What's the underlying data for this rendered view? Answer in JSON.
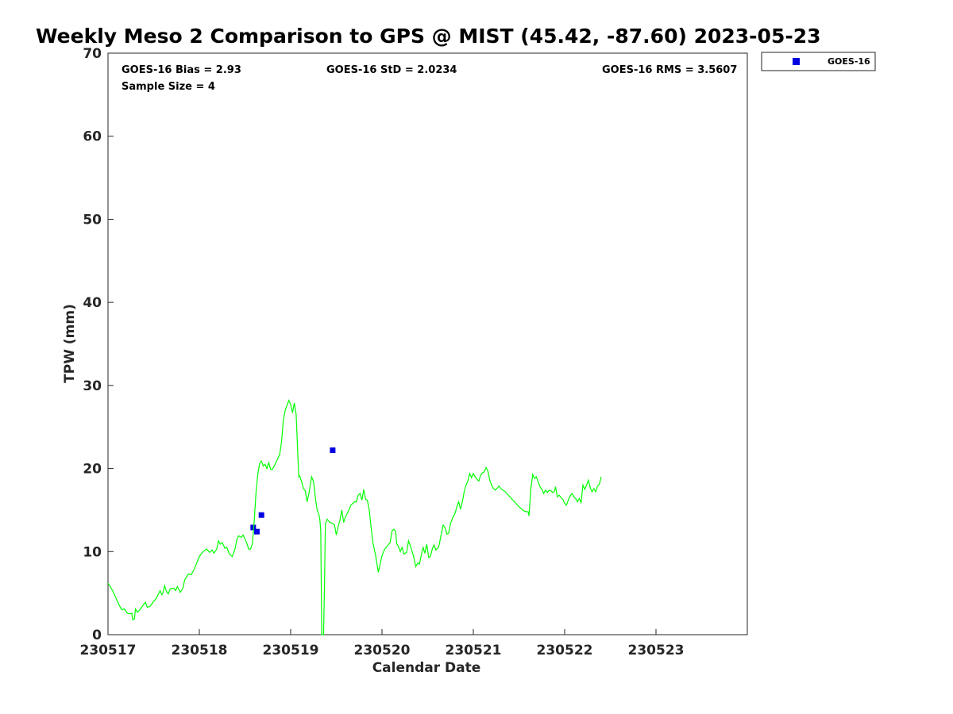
{
  "chart_data": {
    "type": "scatter",
    "title": "Weekly Meso 2 Comparison to GPS @ MIST (45.42, -87.60) 2023-05-23",
    "xlabel": "Calendar Date",
    "ylabel": "TPW (mm)",
    "xlim": [
      0,
      7
    ],
    "ylim": [
      0,
      70
    ],
    "x_ticks": [
      0,
      1,
      2,
      3,
      4,
      5,
      6
    ],
    "x_tick_labels": [
      "230517",
      "230518",
      "230519",
      "230520",
      "230521",
      "230522",
      "230523"
    ],
    "y_ticks": [
      0,
      10,
      20,
      30,
      40,
      50,
      60,
      70
    ],
    "y_tick_labels": [
      "0",
      "10",
      "20",
      "30",
      "40",
      "50",
      "60",
      "70"
    ],
    "grid": false,
    "legend_position": "outside-top-right",
    "stats": {
      "bias": "GOES-16 Bias = 2.93",
      "std": "GOES-16 StD = 2.0234",
      "rms": "GOES-16 RMS = 3.5607",
      "sample": "Sample Size = 4"
    },
    "series": [
      {
        "name": "GOES-16",
        "kind": "scatter",
        "marker": "square",
        "color": "#0000e0",
        "points": [
          [
            1.59,
            12.9
          ],
          [
            1.63,
            12.4
          ],
          [
            1.68,
            14.4
          ],
          [
            2.46,
            22.2
          ]
        ]
      },
      {
        "kind": "line",
        "color": "#00ff00",
        "points": [
          [
            0.0,
            6.2
          ],
          [
            0.04,
            5.5
          ],
          [
            0.08,
            4.6
          ],
          [
            0.12,
            3.6
          ],
          [
            0.15,
            3.0
          ],
          [
            0.18,
            3.1
          ],
          [
            0.21,
            2.6
          ],
          [
            0.24,
            2.5
          ],
          [
            0.26,
            2.6
          ],
          [
            0.27,
            1.8
          ],
          [
            0.29,
            1.9
          ],
          [
            0.3,
            3.1
          ],
          [
            0.32,
            2.7
          ],
          [
            0.35,
            3.0
          ],
          [
            0.38,
            3.5
          ],
          [
            0.41,
            3.9
          ],
          [
            0.43,
            3.3
          ],
          [
            0.46,
            3.4
          ],
          [
            0.5,
            4.0
          ],
          [
            0.53,
            4.4
          ],
          [
            0.57,
            5.3
          ],
          [
            0.59,
            4.8
          ],
          [
            0.6,
            5.0
          ],
          [
            0.62,
            5.9
          ],
          [
            0.64,
            5.2
          ],
          [
            0.66,
            4.9
          ],
          [
            0.68,
            5.5
          ],
          [
            0.72,
            5.6
          ],
          [
            0.74,
            5.3
          ],
          [
            0.76,
            5.8
          ],
          [
            0.79,
            5.1
          ],
          [
            0.82,
            5.6
          ],
          [
            0.84,
            6.6
          ],
          [
            0.88,
            7.3
          ],
          [
            0.91,
            7.2
          ],
          [
            0.94,
            7.8
          ],
          [
            0.97,
            8.6
          ],
          [
            1.0,
            9.4
          ],
          [
            1.04,
            10.0
          ],
          [
            1.08,
            10.3
          ],
          [
            1.11,
            9.9
          ],
          [
            1.14,
            10.2
          ],
          [
            1.16,
            9.8
          ],
          [
            1.19,
            10.3
          ],
          [
            1.21,
            11.3
          ],
          [
            1.23,
            10.9
          ],
          [
            1.25,
            11.1
          ],
          [
            1.28,
            10.4
          ],
          [
            1.3,
            10.5
          ],
          [
            1.33,
            9.7
          ],
          [
            1.36,
            9.4
          ],
          [
            1.39,
            10.3
          ],
          [
            1.41,
            11.4
          ],
          [
            1.43,
            11.9
          ],
          [
            1.46,
            11.7
          ],
          [
            1.48,
            12.0
          ],
          [
            1.5,
            11.5
          ],
          [
            1.52,
            11.0
          ],
          [
            1.54,
            10.3
          ],
          [
            1.56,
            10.3
          ],
          [
            1.58,
            10.9
          ],
          [
            1.6,
            13.5
          ],
          [
            1.62,
            17.0
          ],
          [
            1.64,
            19.3
          ],
          [
            1.66,
            20.6
          ],
          [
            1.68,
            20.9
          ],
          [
            1.7,
            20.3
          ],
          [
            1.72,
            20.5
          ],
          [
            1.74,
            20.0
          ],
          [
            1.76,
            20.7
          ],
          [
            1.78,
            19.9
          ],
          [
            1.8,
            19.9
          ],
          [
            1.82,
            20.3
          ],
          [
            1.85,
            21.0
          ],
          [
            1.88,
            21.7
          ],
          [
            1.9,
            23.2
          ],
          [
            1.92,
            25.8
          ],
          [
            1.94,
            27.0
          ],
          [
            1.96,
            27.6
          ],
          [
            1.98,
            28.2
          ],
          [
            2.0,
            27.7
          ],
          [
            2.02,
            26.7
          ],
          [
            2.04,
            27.9
          ],
          [
            2.06,
            26.5
          ],
          [
            2.07,
            24.0
          ],
          [
            2.08,
            21.2
          ],
          [
            2.09,
            19.0
          ],
          [
            2.1,
            19.1
          ],
          [
            2.12,
            18.4
          ],
          [
            2.14,
            17.6
          ],
          [
            2.16,
            17.3
          ],
          [
            2.18,
            16.0
          ],
          [
            2.2,
            17.0
          ],
          [
            2.22,
            18.4
          ],
          [
            2.23,
            19.0
          ],
          [
            2.25,
            18.4
          ],
          [
            2.27,
            16.5
          ],
          [
            2.29,
            15.0
          ],
          [
            2.31,
            14.4
          ],
          [
            2.32,
            13.8
          ],
          [
            2.33,
            12.5
          ],
          [
            2.34,
            0.0
          ],
          [
            2.36,
            0.0
          ],
          [
            2.37,
            6.0
          ],
          [
            2.38,
            13.3
          ],
          [
            2.4,
            13.9
          ],
          [
            2.43,
            13.5
          ],
          [
            2.46,
            13.4
          ],
          [
            2.48,
            13.2
          ],
          [
            2.5,
            12.0
          ],
          [
            2.52,
            13.0
          ],
          [
            2.54,
            13.8
          ],
          [
            2.56,
            15.0
          ],
          [
            2.58,
            13.5
          ],
          [
            2.6,
            14.2
          ],
          [
            2.63,
            14.8
          ],
          [
            2.66,
            15.6
          ],
          [
            2.7,
            16.0
          ],
          [
            2.72,
            16.0
          ],
          [
            2.74,
            16.8
          ],
          [
            2.76,
            17.0
          ],
          [
            2.78,
            16.2
          ],
          [
            2.8,
            17.5
          ],
          [
            2.82,
            16.3
          ],
          [
            2.84,
            16.2
          ],
          [
            2.86,
            15.0
          ],
          [
            2.88,
            13.0
          ],
          [
            2.9,
            11.1
          ],
          [
            2.93,
            9.5
          ],
          [
            2.96,
            7.5
          ],
          [
            2.98,
            8.5
          ],
          [
            3.0,
            9.5
          ],
          [
            3.03,
            10.3
          ],
          [
            3.06,
            10.7
          ],
          [
            3.09,
            11.1
          ],
          [
            3.11,
            12.5
          ],
          [
            3.13,
            12.7
          ],
          [
            3.15,
            12.4
          ],
          [
            3.16,
            11.0
          ],
          [
            3.18,
            10.6
          ],
          [
            3.2,
            10.0
          ],
          [
            3.22,
            10.5
          ],
          [
            3.24,
            9.7
          ],
          [
            3.27,
            9.9
          ],
          [
            3.29,
            11.3
          ],
          [
            3.31,
            10.7
          ],
          [
            3.33,
            10.0
          ],
          [
            3.35,
            9.2
          ],
          [
            3.37,
            8.2
          ],
          [
            3.39,
            8.6
          ],
          [
            3.41,
            8.5
          ],
          [
            3.43,
            9.6
          ],
          [
            3.45,
            10.5
          ],
          [
            3.47,
            9.8
          ],
          [
            3.49,
            10.9
          ],
          [
            3.51,
            9.3
          ],
          [
            3.53,
            9.4
          ],
          [
            3.55,
            10.3
          ],
          [
            3.57,
            10.8
          ],
          [
            3.59,
            10.2
          ],
          [
            3.62,
            10.5
          ],
          [
            3.64,
            11.6
          ],
          [
            3.67,
            13.2
          ],
          [
            3.69,
            12.9
          ],
          [
            3.71,
            12.1
          ],
          [
            3.73,
            12.2
          ],
          [
            3.75,
            13.4
          ],
          [
            3.78,
            14.2
          ],
          [
            3.8,
            14.6
          ],
          [
            3.82,
            15.4
          ],
          [
            3.84,
            16.0
          ],
          [
            3.86,
            15.1
          ],
          [
            3.88,
            16.0
          ],
          [
            3.9,
            17.2
          ],
          [
            3.92,
            18.0
          ],
          [
            3.94,
            18.5
          ],
          [
            3.96,
            19.4
          ],
          [
            3.98,
            18.9
          ],
          [
            4.0,
            19.4
          ],
          [
            4.02,
            19.0
          ],
          [
            4.04,
            18.7
          ],
          [
            4.06,
            18.5
          ],
          [
            4.08,
            19.2
          ],
          [
            4.1,
            19.5
          ],
          [
            4.12,
            19.6
          ],
          [
            4.14,
            20.1
          ],
          [
            4.16,
            19.7
          ],
          [
            4.18,
            18.6
          ],
          [
            4.2,
            18.0
          ],
          [
            4.22,
            17.6
          ],
          [
            4.24,
            17.4
          ],
          [
            4.26,
            17.6
          ],
          [
            4.28,
            17.9
          ],
          [
            4.3,
            17.6
          ],
          [
            4.35,
            17.2
          ],
          [
            4.4,
            16.6
          ],
          [
            4.45,
            16.0
          ],
          [
            4.5,
            15.4
          ],
          [
            4.55,
            14.9
          ],
          [
            4.58,
            14.8
          ],
          [
            4.6,
            14.8
          ],
          [
            4.61,
            14.3
          ],
          [
            4.63,
            17.5
          ],
          [
            4.65,
            19.3
          ],
          [
            4.67,
            18.8
          ],
          [
            4.69,
            19.0
          ],
          [
            4.71,
            18.4
          ],
          [
            4.73,
            17.8
          ],
          [
            4.75,
            17.5
          ],
          [
            4.77,
            17.0
          ],
          [
            4.79,
            17.4
          ],
          [
            4.81,
            17.1
          ],
          [
            4.83,
            17.4
          ],
          [
            4.85,
            17.3
          ],
          [
            4.87,
            17.1
          ],
          [
            4.89,
            17.3
          ],
          [
            4.9,
            17.8
          ],
          [
            4.92,
            16.6
          ],
          [
            4.94,
            16.8
          ],
          [
            4.96,
            16.5
          ],
          [
            4.98,
            16.3
          ],
          [
            5.0,
            15.8
          ],
          [
            5.02,
            15.6
          ],
          [
            5.04,
            16.2
          ],
          [
            5.06,
            16.7
          ],
          [
            5.08,
            17.0
          ],
          [
            5.1,
            16.6
          ],
          [
            5.12,
            16.4
          ],
          [
            5.14,
            16.0
          ],
          [
            5.16,
            16.4
          ],
          [
            5.18,
            15.9
          ],
          [
            5.2,
            18.0
          ],
          [
            5.22,
            17.5
          ],
          [
            5.24,
            18.0
          ],
          [
            5.26,
            18.6
          ],
          [
            5.28,
            17.7
          ],
          [
            5.3,
            17.2
          ],
          [
            5.32,
            17.6
          ],
          [
            5.34,
            17.2
          ],
          [
            5.36,
            17.9
          ],
          [
            5.38,
            18.1
          ],
          [
            5.4,
            19.0
          ]
        ]
      }
    ]
  }
}
